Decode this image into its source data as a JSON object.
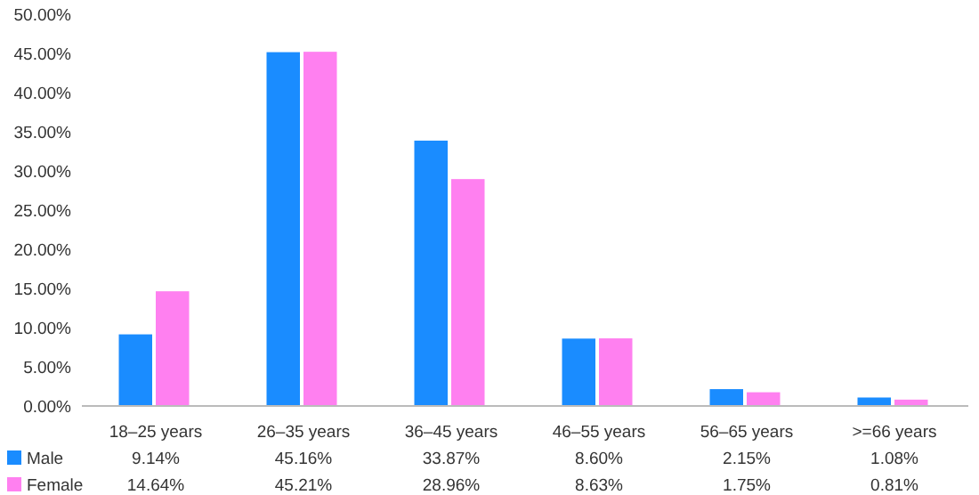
{
  "chart_data": {
    "type": "bar",
    "categories": [
      "18–25 years",
      "26–35 years",
      "36–45 years",
      "46–55 years",
      "56–65 years",
      ">=66 years"
    ],
    "series": [
      {
        "name": "Male",
        "color": "#1a8cff",
        "values": [
          9.14,
          45.16,
          33.87,
          8.6,
          2.15,
          1.08
        ],
        "value_labels": [
          "9.14%",
          "45.16%",
          "33.87%",
          "8.60%",
          "2.15%",
          "1.08%"
        ]
      },
      {
        "name": "Female",
        "color": "#ff80f0",
        "values": [
          14.64,
          45.21,
          28.96,
          8.63,
          1.75,
          0.81
        ],
        "value_labels": [
          "14.64%",
          "45.21%",
          "28.96%",
          "8.63%",
          "1.75%",
          "0.81%"
        ]
      }
    ],
    "ylim": [
      0,
      50
    ],
    "yticks": [
      {
        "value": 0,
        "label": "0.00%"
      },
      {
        "value": 5,
        "label": "5.00%"
      },
      {
        "value": 10,
        "label": "10.00%"
      },
      {
        "value": 15,
        "label": "15.00%"
      },
      {
        "value": 20,
        "label": "20.00%"
      },
      {
        "value": 25,
        "label": "25.00%"
      },
      {
        "value": 30,
        "label": "30.00%"
      },
      {
        "value": 35,
        "label": "35.00%"
      },
      {
        "value": 40,
        "label": "40.00%"
      },
      {
        "value": 45,
        "label": "45.00%"
      },
      {
        "value": 50,
        "label": "50.00%"
      }
    ],
    "grid": false,
    "legend": "bottom"
  }
}
